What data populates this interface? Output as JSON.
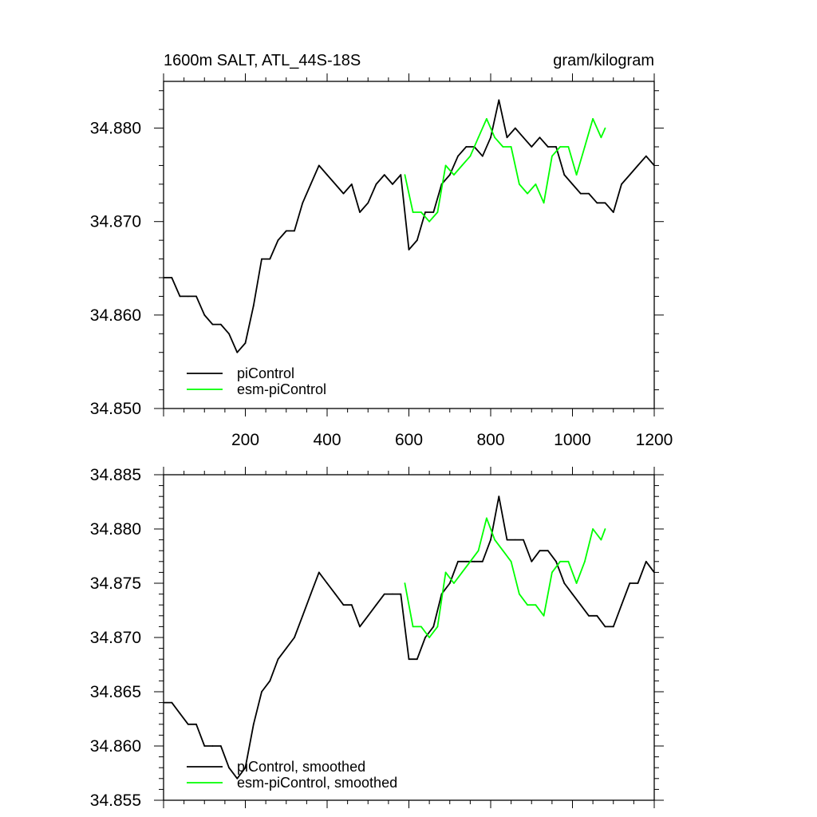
{
  "chart_data": [
    {
      "type": "line",
      "title": "1600m SALT, ATL_44S-18S",
      "units": "gram/kilogram",
      "xlim": [
        0,
        1200
      ],
      "ylim": [
        34.85,
        34.885
      ],
      "xticks": [
        200,
        400,
        600,
        800,
        1000,
        1200
      ],
      "xtick_labels": [
        "200",
        "400",
        "600",
        "800",
        "1000",
        "1200"
      ],
      "yticks": [
        34.85,
        34.86,
        34.87,
        34.88
      ],
      "ytick_labels": [
        "34.850",
        "34.860",
        "34.870",
        "34.880"
      ],
      "legend_position": "bottom-left",
      "series": [
        {
          "name": "piControl",
          "color": "#000000",
          "x": [
            0,
            20,
            40,
            60,
            80,
            100,
            120,
            140,
            160,
            180,
            200,
            220,
            240,
            260,
            280,
            300,
            320,
            340,
            360,
            380,
            400,
            420,
            440,
            460,
            480,
            500,
            520,
            540,
            560,
            580,
            600,
            620,
            640,
            660,
            680,
            700,
            720,
            740,
            760,
            780,
            800,
            820,
            840,
            860,
            880,
            900,
            920,
            940,
            960,
            980,
            1000,
            1020,
            1040,
            1060,
            1080,
            1100,
            1120,
            1140,
            1160,
            1180,
            1200
          ],
          "y": [
            34.864,
            34.864,
            34.862,
            34.862,
            34.862,
            34.86,
            34.859,
            34.859,
            34.858,
            34.856,
            34.857,
            34.861,
            34.866,
            34.866,
            34.868,
            34.869,
            34.869,
            34.872,
            34.874,
            34.876,
            34.875,
            34.874,
            34.873,
            34.874,
            34.871,
            34.872,
            34.874,
            34.875,
            34.874,
            34.875,
            34.867,
            34.868,
            34.871,
            34.871,
            34.874,
            34.875,
            34.877,
            34.878,
            34.878,
            34.877,
            34.879,
            34.883,
            34.879,
            34.88,
            34.879,
            34.878,
            34.879,
            34.878,
            34.878,
            34.875,
            34.874,
            34.873,
            34.873,
            34.872,
            34.872,
            34.871,
            34.874,
            34.875,
            34.876,
            34.877,
            34.876
          ]
        },
        {
          "name": "esm-piControl",
          "color": "#00ff00",
          "x": [
            590,
            610,
            630,
            650,
            670,
            690,
            710,
            730,
            750,
            770,
            790,
            810,
            830,
            850,
            870,
            890,
            910,
            930,
            950,
            970,
            990,
            1010,
            1030,
            1050,
            1070,
            1080
          ],
          "y": [
            34.875,
            34.871,
            34.871,
            34.87,
            34.871,
            34.876,
            34.875,
            34.876,
            34.877,
            34.879,
            34.881,
            34.879,
            34.878,
            34.878,
            34.874,
            34.873,
            34.874,
            34.872,
            34.877,
            34.878,
            34.878,
            34.875,
            34.878,
            34.881,
            34.879,
            34.88
          ]
        }
      ]
    },
    {
      "type": "line",
      "xlim": [
        0,
        1200
      ],
      "ylim": [
        34.855,
        34.885
      ],
      "yticks": [
        34.855,
        34.86,
        34.865,
        34.87,
        34.875,
        34.88,
        34.885
      ],
      "ytick_labels": [
        "34.855",
        "34.860",
        "34.865",
        "34.870",
        "34.875",
        "34.880",
        "34.885"
      ],
      "legend_position": "bottom-left",
      "series": [
        {
          "name": "piControl, smoothed",
          "color": "#000000",
          "x": [
            0,
            20,
            40,
            60,
            80,
            100,
            120,
            140,
            160,
            180,
            200,
            220,
            240,
            260,
            280,
            300,
            320,
            340,
            360,
            380,
            400,
            420,
            440,
            460,
            480,
            500,
            520,
            540,
            560,
            580,
            600,
            620,
            640,
            660,
            680,
            700,
            720,
            740,
            760,
            780,
            800,
            820,
            840,
            860,
            880,
            900,
            920,
            940,
            960,
            980,
            1000,
            1020,
            1040,
            1060,
            1080,
            1100,
            1120,
            1140,
            1160,
            1180,
            1200
          ],
          "y": [
            34.864,
            34.864,
            34.863,
            34.862,
            34.862,
            34.86,
            34.86,
            34.86,
            34.858,
            34.857,
            34.858,
            34.862,
            34.865,
            34.866,
            34.868,
            34.869,
            34.87,
            34.872,
            34.874,
            34.876,
            34.875,
            34.874,
            34.873,
            34.873,
            34.871,
            34.872,
            34.873,
            34.874,
            34.874,
            34.874,
            34.868,
            34.868,
            34.87,
            34.871,
            34.874,
            34.875,
            34.877,
            34.877,
            34.877,
            34.877,
            34.879,
            34.883,
            34.879,
            34.879,
            34.879,
            34.877,
            34.878,
            34.878,
            34.877,
            34.875,
            34.874,
            34.873,
            34.872,
            34.872,
            34.871,
            34.871,
            34.873,
            34.875,
            34.875,
            34.877,
            34.876
          ]
        },
        {
          "name": "esm-piControl, smoothed",
          "color": "#00ff00",
          "x": [
            590,
            610,
            630,
            650,
            670,
            690,
            710,
            730,
            750,
            770,
            790,
            810,
            830,
            850,
            870,
            890,
            910,
            930,
            950,
            970,
            990,
            1010,
            1030,
            1050,
            1070,
            1080
          ],
          "y": [
            34.875,
            34.871,
            34.871,
            34.87,
            34.871,
            34.876,
            34.875,
            34.876,
            34.877,
            34.878,
            34.881,
            34.879,
            34.878,
            34.877,
            34.874,
            34.873,
            34.873,
            34.872,
            34.876,
            34.877,
            34.877,
            34.875,
            34.877,
            34.88,
            34.879,
            34.88
          ]
        }
      ]
    }
  ]
}
